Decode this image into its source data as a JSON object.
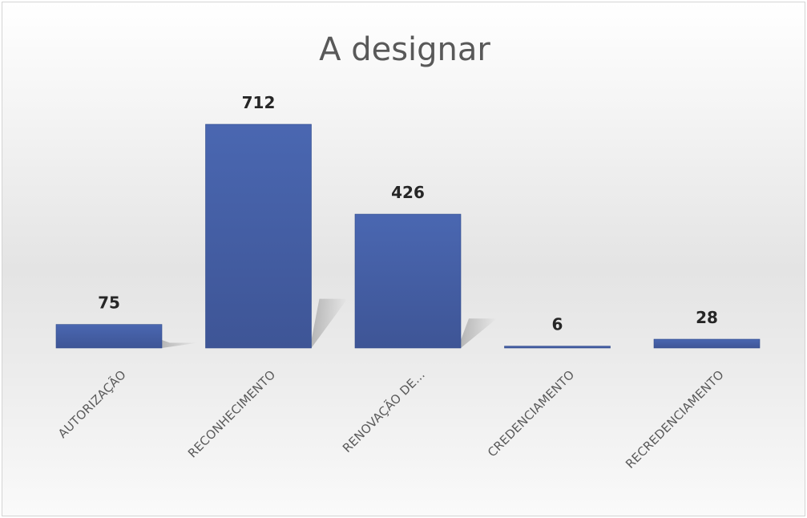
{
  "chart_data": {
    "type": "bar",
    "title": "A designar",
    "categories": [
      "AUTORIZAÇÃO",
      "RECONHECIMENTO",
      "RENOVAÇÃO DE...",
      "CREDENCIAMENTO",
      "RECREDENCIAMENTO"
    ],
    "values": [
      75,
      712,
      426,
      6,
      28
    ],
    "value_labels": [
      "75",
      "712",
      "426",
      "6",
      "28"
    ],
    "xlabel": "",
    "ylabel": "",
    "ylim": [
      0,
      712
    ],
    "grid": false,
    "legend": "none",
    "colors": {
      "bar_top": "#4a67b1",
      "bar_bottom": "#3e5596",
      "bar_edge": "#2f4a8a"
    }
  }
}
